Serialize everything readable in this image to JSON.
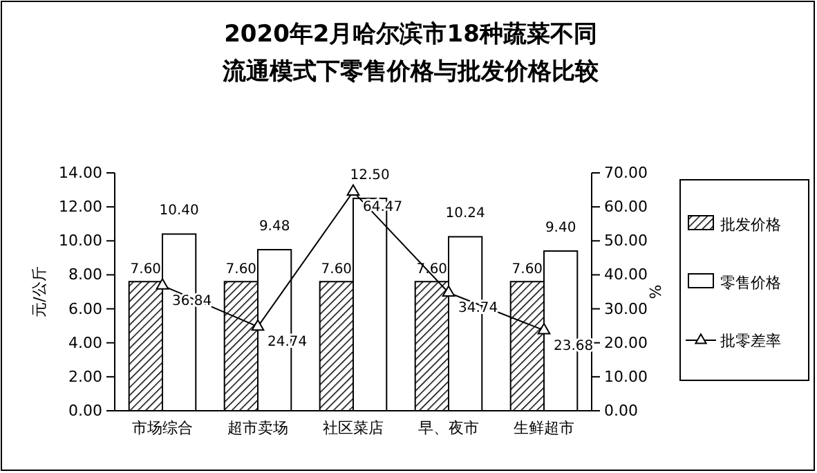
{
  "chart_data": {
    "type": "bar",
    "title": "2020年2月哈尔滨市18种蔬菜不同流通模式下零售价格与批发价格比较",
    "ylabel": "元/公斤",
    "y2label": "%",
    "categories": [
      "市场综合",
      "超市卖场",
      "社区菜店",
      "早、夜市",
      "生鲜超市"
    ],
    "series": [
      {
        "name": "批发价格",
        "color": "#000000",
        "values": [
          7.6,
          7.6,
          7.6,
          7.6,
          7.6
        ],
        "value_labels": [
          "7.60",
          "7.60",
          "7.60",
          "7.60",
          "7.60"
        ]
      },
      {
        "name": "零售价格",
        "color": "#ffffff",
        "values": [
          10.4,
          9.48,
          12.5,
          10.24,
          9.4
        ],
        "value_labels": [
          "10.40",
          "9.48",
          "12.50",
          "10.24",
          "9.40"
        ]
      },
      {
        "name": "批零差率",
        "type": "line",
        "axis": "y2",
        "color": "#000000",
        "marker": "triangle",
        "values": [
          36.84,
          24.74,
          64.47,
          34.74,
          23.68
        ],
        "value_labels": [
          "36.84",
          "24.74",
          "64.47",
          "34.74",
          "23.68"
        ]
      }
    ],
    "ylim": [
      0,
      14
    ],
    "yticks": [
      {
        "value": 0,
        "label": "0.00"
      },
      {
        "value": 2,
        "label": "2.00"
      },
      {
        "value": 4,
        "label": "4.00"
      },
      {
        "value": 6,
        "label": "6.00"
      },
      {
        "value": 8,
        "label": "8.00"
      },
      {
        "value": 10,
        "label": "10.00"
      },
      {
        "value": 12,
        "label": "12.00"
      },
      {
        "value": 14,
        "label": "14.00"
      }
    ],
    "y2lim": [
      0,
      70
    ],
    "y2ticks": [
      {
        "value": 0,
        "label": "0.00"
      },
      {
        "value": 10,
        "label": "10.00"
      },
      {
        "value": 20,
        "label": "20.00"
      },
      {
        "value": 30,
        "label": "30.00"
      },
      {
        "value": 40,
        "label": "40.00"
      },
      {
        "value": 50,
        "label": "50.00"
      },
      {
        "value": 60,
        "label": "60.00"
      },
      {
        "value": 70,
        "label": "70.00"
      }
    ],
    "legend": "right",
    "grid": false
  }
}
